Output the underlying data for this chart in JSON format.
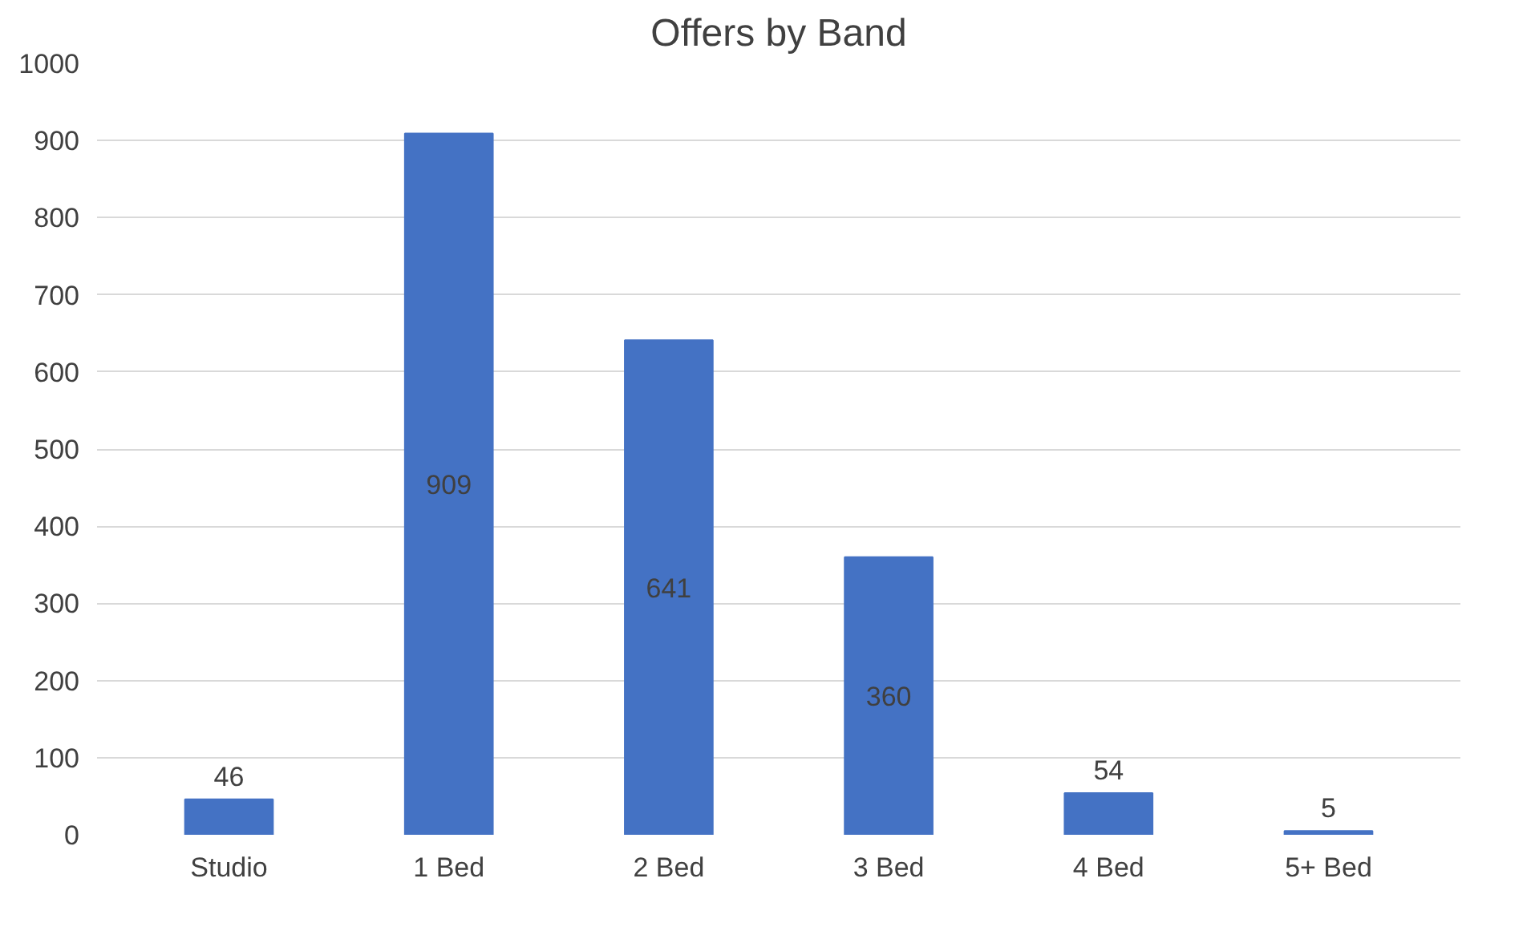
{
  "chart_data": {
    "type": "bar",
    "title": "Offers by Band",
    "categories": [
      "Studio",
      "1 Bed",
      "2 Bed",
      "3 Bed",
      "4 Bed",
      "5+ Bed"
    ],
    "values": [
      46,
      909,
      641,
      360,
      54,
      5
    ],
    "color": "#4472c4",
    "ylim": [
      0,
      1000
    ],
    "yticks": [
      0,
      100,
      200,
      300,
      400,
      500,
      600,
      700,
      800,
      900,
      1000
    ],
    "grid": "y",
    "data_labels": true
  }
}
